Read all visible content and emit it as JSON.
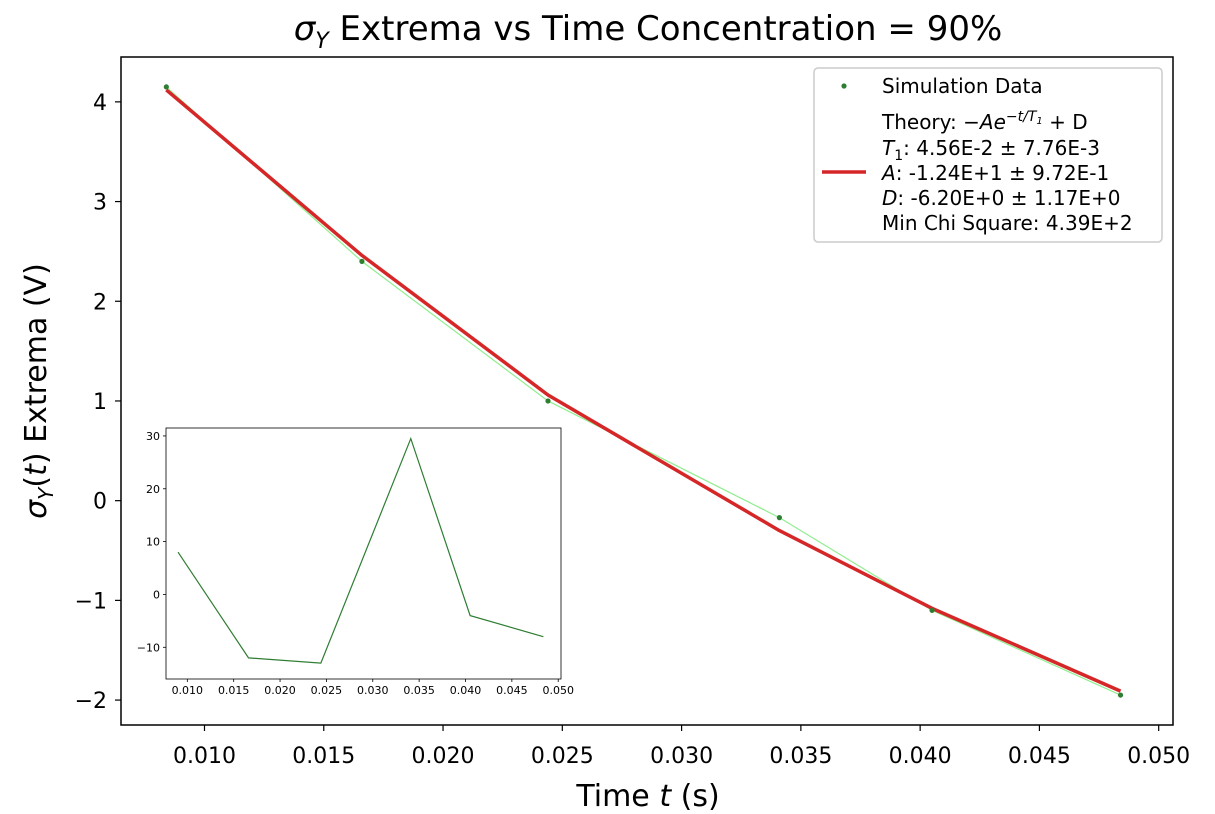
{
  "title": "σY Extrema vs Time Concentration = 90%",
  "title_parts": {
    "sym": "σ",
    "sub": "Y",
    "rest": " Extrema vs Time Concentration = 90%"
  },
  "xlabel": "Time t (s)",
  "xlabel_parts": {
    "pre": "Time ",
    "var": "t",
    "post": " (s)"
  },
  "ylabel": "σY(t) Extrema (V)",
  "ylabel_parts": {
    "sym": "σ",
    "sub": "Y",
    "paren": "(",
    "var": "t",
    "paren2": ")",
    "rest": " Extrema (V)"
  },
  "legend": {
    "sim_label": "Simulation Data",
    "theory_line1": "Theory: −Ae^{−t/T1} + D",
    "theory_parts": {
      "pre": "Theory: ",
      "expr": "−Ae",
      "exp": "−t/T",
      "exp_sub": "1",
      "post": " + D"
    },
    "t1_var": "T",
    "t1_sub": "1",
    "t1_text": ": 4.56E-2 ± 7.76E-3",
    "a_var": "A",
    "a_text": ": -1.24E+1 ± 9.72E-1",
    "d_var": "D",
    "d_text": ": -6.20E+0 ± 1.17E+0",
    "chi_text": "Min Chi Square: 4.39E+2"
  },
  "chart_data": [
    {
      "type": "line",
      "title": "σY Extrema vs Time Concentration = 90%",
      "xlabel": "Time t (s)",
      "ylabel": "σY(t) Extrema (V)",
      "xlim": [
        0.0065,
        0.0506
      ],
      "ylim": [
        -2.25,
        4.45
      ],
      "xticks": [
        0.01,
        0.015,
        0.02,
        0.025,
        0.03,
        0.035,
        0.04,
        0.045,
        0.05
      ],
      "xtick_labels": [
        "0.010",
        "0.015",
        "0.020",
        "0.025",
        "0.030",
        "0.035",
        "0.040",
        "0.045",
        "0.050"
      ],
      "yticks": [
        -2,
        -1,
        0,
        1,
        2,
        3,
        4
      ],
      "ytick_labels": [
        "−2",
        "−1",
        "0",
        "1",
        "2",
        "3",
        "4"
      ],
      "legend_position": "upper right",
      "grid": false,
      "series": [
        {
          "name": "Simulation Data",
          "kind": "scatter-with-line",
          "color": "#2e7d32",
          "line_color": "#90ee90",
          "x": [
            0.0084,
            0.0166,
            0.0244,
            0.0341,
            0.0405,
            0.0484
          ],
          "y": [
            4.15,
            2.4,
            1.0,
            -0.17,
            -1.1,
            -1.95
          ]
        },
        {
          "name": "Theory: −Ae^{−t/T1} + D",
          "kind": "line",
          "color": "#d62728",
          "x": [
            0.0084,
            0.0166,
            0.0244,
            0.0341,
            0.0405,
            0.0484
          ],
          "y": [
            4.12,
            2.46,
            1.06,
            -0.3,
            -1.08,
            -1.91
          ]
        }
      ]
    },
    {
      "type": "line",
      "inset": true,
      "xlim": [
        0.0077,
        0.0503
      ],
      "ylim": [
        -16,
        31.5
      ],
      "xticks": [
        0.01,
        0.015,
        0.02,
        0.025,
        0.03,
        0.035,
        0.04,
        0.045,
        0.05
      ],
      "xtick_labels": [
        "0.010",
        "0.015",
        "0.020",
        "0.025",
        "0.030",
        "0.035",
        "0.040",
        "0.045",
        "0.050"
      ],
      "yticks": [
        -10,
        0,
        10,
        20,
        30
      ],
      "ytick_labels": [
        "−10",
        "0",
        "10",
        "20",
        "30"
      ],
      "series": [
        {
          "color": "#2e7d32",
          "x": [
            0.009,
            0.0166,
            0.0244,
            0.0341,
            0.0405,
            0.0484
          ],
          "y": [
            8.0,
            -12.0,
            -13.0,
            29.5,
            -4.0,
            -8.0
          ]
        }
      ]
    }
  ]
}
